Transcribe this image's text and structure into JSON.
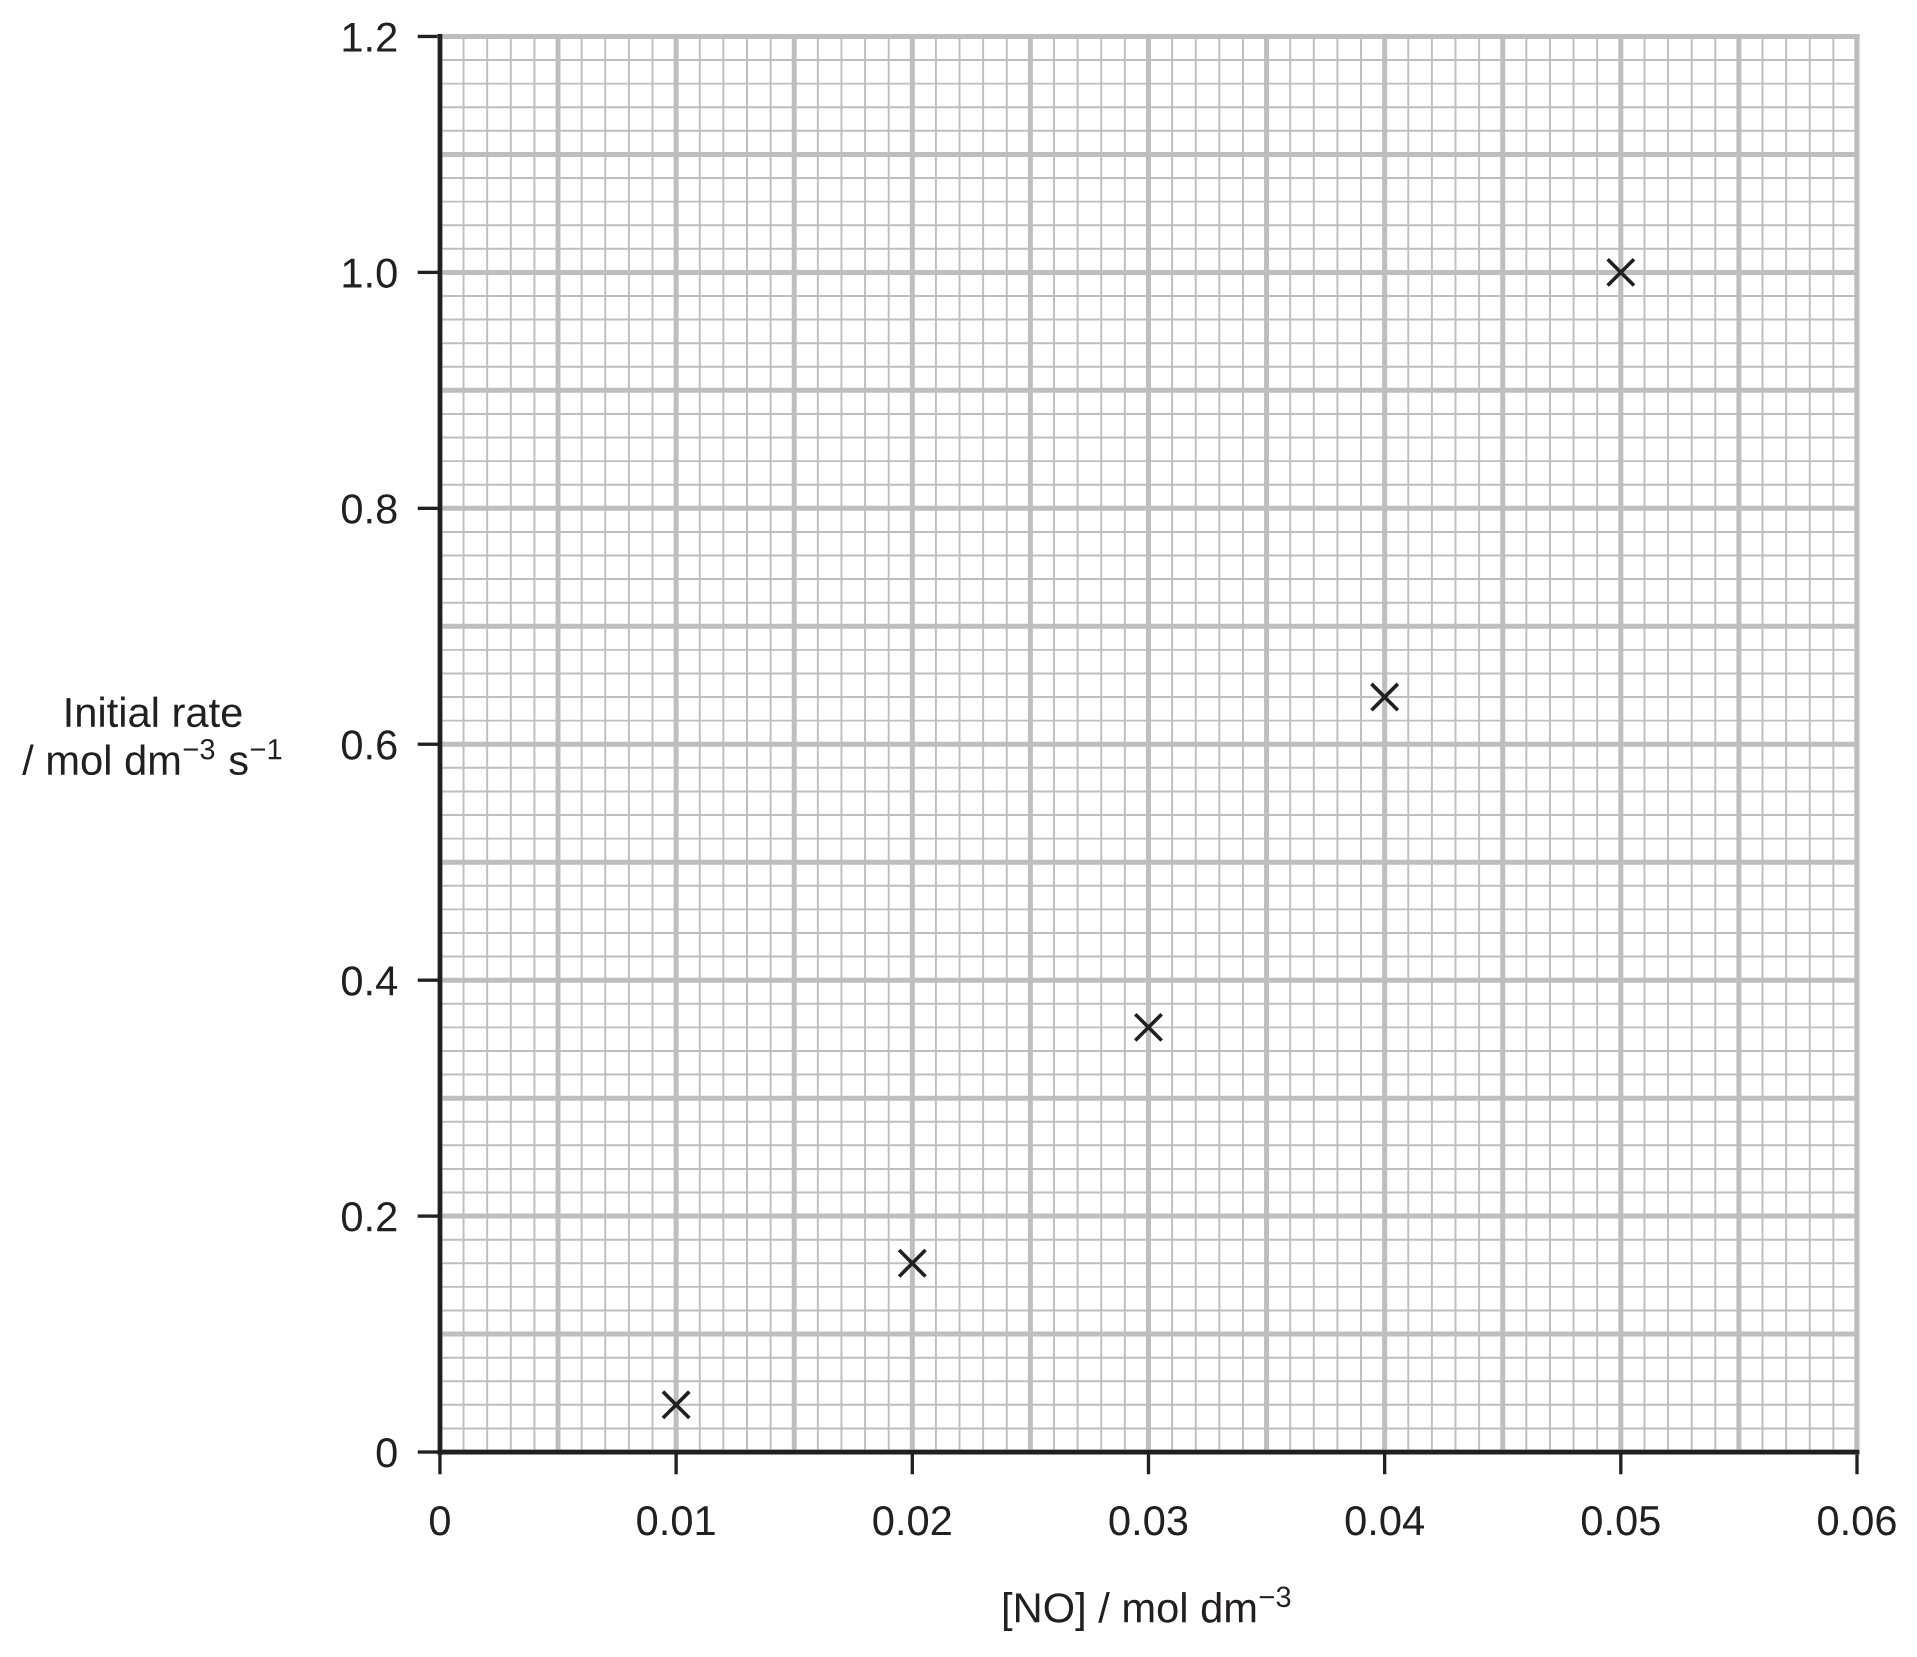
{
  "chart_data": {
    "type": "scatter",
    "xlabel": "[NO] / mol dm$^{−3}$",
    "ylabel": "Initial rate\n/ mol dm$^{−3}$ s$^{−1}$",
    "x": [
      0.01,
      0.02,
      0.03,
      0.04,
      0.05
    ],
    "series": [
      {
        "color": "#231f20",
        "values": [
          0.04,
          0.16,
          0.36,
          0.64,
          1.0
        ]
      }
    ],
    "marker": "cross",
    "xlim": [
      0,
      0.06
    ],
    "xticks": [
      0,
      0.01,
      0.02,
      0.03,
      0.04,
      0.05,
      0.06
    ],
    "ylim": [
      0,
      1.2
    ],
    "yticks": [
      0,
      0.2,
      0.4,
      0.6,
      0.8,
      {
        "value": 1,
        "label": "1.0"
      },
      1.2
    ],
    "grid": true
  }
}
